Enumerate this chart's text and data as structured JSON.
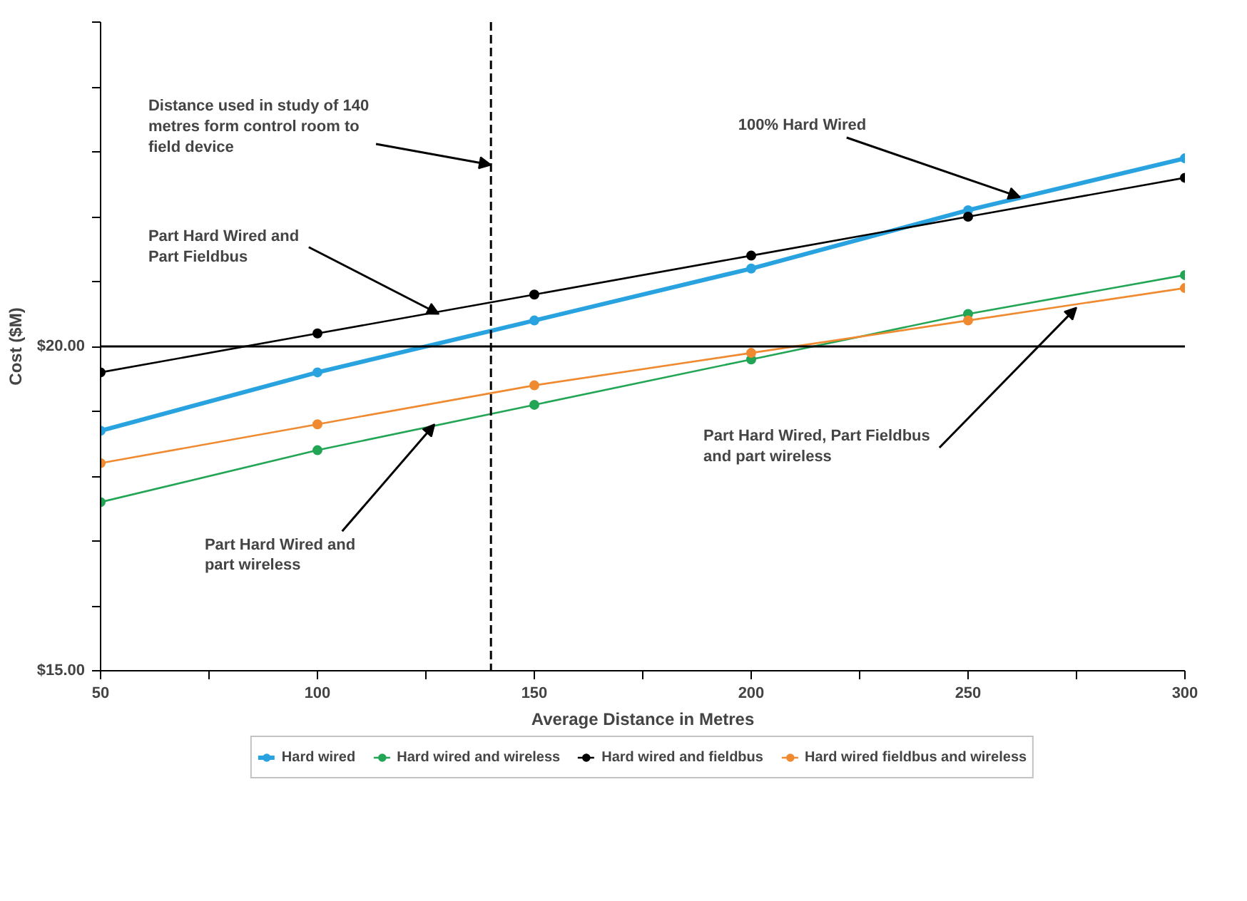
{
  "chart_data": {
    "type": "line",
    "xlabel": "Average Distance in Metres",
    "ylabel": "Cost ($M)",
    "x": [
      50,
      100,
      150,
      200,
      250,
      300
    ],
    "xlim": [
      50,
      300
    ],
    "ylim": [
      15,
      25
    ],
    "xticks": [
      50,
      {
        "value": 75,
        "label": null
      },
      100,
      {
        "value": 125,
        "label": null
      },
      150,
      {
        "value": 175,
        "label": null
      },
      200,
      {
        "value": 225,
        "label": null
      },
      250,
      {
        "value": 275,
        "label": null
      },
      300
    ],
    "yticks": [
      {
        "value": 15,
        "label": "$15.00"
      },
      {
        "value": 16,
        "label": null
      },
      {
        "value": 17,
        "label": null
      },
      {
        "value": 18,
        "label": null
      },
      {
        "value": 19,
        "label": null
      },
      {
        "value": 20,
        "label": "$20.00"
      },
      {
        "value": 21,
        "label": null
      },
      {
        "value": 22,
        "label": null
      },
      {
        "value": 23,
        "label": null
      },
      {
        "value": 24,
        "label": null
      },
      {
        "value": 25,
        "label": null
      }
    ],
    "series": [
      {
        "name": "Hard wired",
        "color": "#29a3e0",
        "values": [
          18.7,
          19.6,
          20.4,
          21.2,
          22.1,
          22.9
        ]
      },
      {
        "name": "Hard wired and wireless",
        "color": "#22a555",
        "values": [
          17.6,
          18.4,
          19.1,
          19.8,
          20.5,
          21.1
        ]
      },
      {
        "name": "Hard wired and fieldbus",
        "color": "#000000",
        "values": [
          19.6,
          20.2,
          20.8,
          21.4,
          22.0,
          22.6
        ]
      },
      {
        "name": "Hard wired fieldbus and wireless",
        "color": "#f08a30",
        "values": [
          18.2,
          18.8,
          19.4,
          19.9,
          20.4,
          20.9
        ]
      }
    ],
    "ref_lines": [
      {
        "axis": "y",
        "value": 20,
        "label": null,
        "color": "#000000",
        "line_style": "solid"
      },
      {
        "axis": "x",
        "value": 140,
        "label": null,
        "color": "#000000",
        "line_style": "dashed"
      }
    ],
    "annotations": [
      {
        "text": "Distance used in study of 140\nmetres form control room to\nfield device",
        "x": 140,
        "y": 22.8
      },
      {
        "text": "Part Hard Wired and\nPart Fieldbus",
        "x": 128,
        "y": 20.5
      },
      {
        "text": "100% Hard Wired",
        "x": 262,
        "y": 22.3
      },
      {
        "text": "Part Hard Wired, Part Fieldbus\nand part wireless",
        "x": 275,
        "y": 20.6
      },
      {
        "text": "Part Hard Wired and\npart wireless",
        "x": 127,
        "y": 18.8
      }
    ],
    "marker": "circle",
    "line_style": "solid",
    "grid": false,
    "legend": "bottom"
  }
}
